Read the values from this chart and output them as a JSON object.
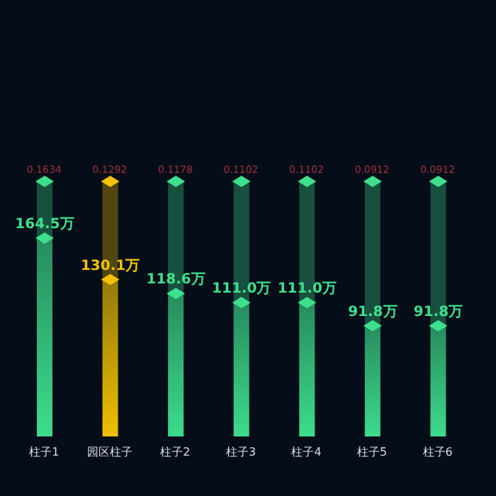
{
  "chart_data": {
    "type": "bar",
    "categories": [
      "柱子1",
      "园区柱子",
      "柱子2",
      "柱子3",
      "柱子4",
      "柱子5",
      "柱子6"
    ],
    "series": [
      {
        "values": [
          164.5,
          130.1,
          118.6,
          111.0,
          111.0,
          91.8,
          91.8
        ],
        "colors": [
          "#3ee08e",
          "#f2c200",
          "#3ee08e",
          "#3ee08e",
          "#3ee08e",
          "#3ee08e",
          "#3ee08e"
        ],
        "value_labels": [
          "164.5万",
          "130.1万",
          "118.6万",
          "111.0万",
          "111.0万",
          "91.8万",
          "91.8万"
        ]
      }
    ],
    "annotations": [
      "0.1634",
      "0.1292",
      "0.1178",
      "0.1102",
      "0.1102",
      "0.0912",
      "0.0912"
    ]
  }
}
